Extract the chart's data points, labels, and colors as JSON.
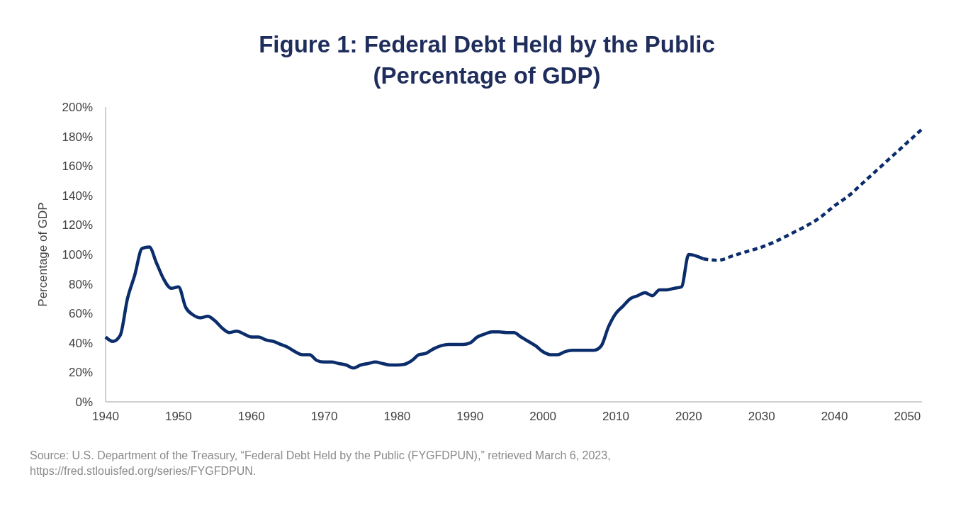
{
  "chart_data": {
    "type": "line",
    "title": "Figure 1: Federal Debt Held by the Public",
    "subtitle": "(Percentage of GDP)",
    "ylabel": "Percentage of GDP",
    "xlim": [
      1940,
      2052
    ],
    "xticks": [
      1940,
      1950,
      1960,
      1970,
      1980,
      1990,
      2000,
      2010,
      2020,
      2030,
      2040,
      2050
    ],
    "ylim": [
      0,
      200
    ],
    "yticks": [
      {
        "value": 0,
        "label": "0%"
      },
      {
        "value": 20,
        "label": "20%"
      },
      {
        "value": 40,
        "label": "40%"
      },
      {
        "value": 60,
        "label": "60%"
      },
      {
        "value": 80,
        "label": "80%"
      },
      {
        "value": 100,
        "label": "100%"
      },
      {
        "value": 120,
        "label": "120%"
      },
      {
        "value": 140,
        "label": "140%"
      },
      {
        "value": 160,
        "label": "160%"
      },
      {
        "value": 180,
        "label": "180%"
      },
      {
        "value": 200,
        "label": "200%"
      }
    ],
    "grid": false,
    "marker": "none",
    "series": [
      {
        "color": "#0b2d6b",
        "line_style": "solid",
        "x": [
          1940,
          1941,
          1942,
          1943,
          1944,
          1945,
          1946,
          1947,
          1948,
          1949,
          1950,
          1951,
          1952,
          1953,
          1954,
          1955,
          1956,
          1957,
          1958,
          1959,
          1960,
          1961,
          1962,
          1963,
          1964,
          1965,
          1966,
          1967,
          1968,
          1969,
          1970,
          1971,
          1972,
          1973,
          1974,
          1975,
          1976,
          1977,
          1978,
          1979,
          1980,
          1981,
          1982,
          1983,
          1984,
          1985,
          1986,
          1987,
          1988,
          1989,
          1990,
          1991,
          1992,
          1993,
          1994,
          1995,
          1996,
          1997,
          1998,
          1999,
          2000,
          2001,
          2002,
          2003,
          2004,
          2005,
          2006,
          2007,
          2008,
          2009,
          2010,
          2011,
          2012,
          2013,
          2014,
          2015,
          2016,
          2017,
          2018,
          2019,
          2020,
          2021,
          2022
        ],
        "values": [
          44,
          41,
          45,
          70,
          86,
          104,
          105,
          94,
          83,
          77,
          78,
          64,
          59,
          57,
          58,
          55,
          50,
          47,
          48,
          46,
          44,
          44,
          42,
          41,
          39,
          37,
          34,
          32,
          32,
          28,
          27,
          27,
          26,
          25,
          23,
          25,
          26,
          27,
          26,
          25,
          25,
          25.5,
          28,
          32,
          33,
          36,
          38,
          39,
          39,
          39,
          40,
          44,
          46,
          47.5,
          47.5,
          47,
          47,
          44,
          41,
          38,
          34,
          32,
          32,
          34,
          35,
          35,
          35,
          35,
          38,
          51,
          60,
          65,
          70,
          72,
          74,
          72,
          76,
          76,
          77,
          78,
          100,
          99,
          97
        ]
      },
      {
        "color": "#0b2d6b",
        "line_style": "dashed",
        "x": [
          2022,
          2024,
          2026,
          2028,
          2030,
          2032,
          2034,
          2036,
          2038,
          2040,
          2042,
          2044,
          2046,
          2048,
          2050,
          2052
        ],
        "values": [
          97,
          96,
          99,
          102,
          105,
          109,
          114,
          119,
          125,
          133,
          140,
          149,
          158,
          167,
          176,
          185
        ]
      }
    ],
    "annotations": [
      "Source: U.S. Department of the Treasury, “Federal Debt Held by the Public (FYGFDPUN),” retrieved March 6, 2023, https://fred.stlouisfed.org/series/FYGFDPUN."
    ]
  }
}
